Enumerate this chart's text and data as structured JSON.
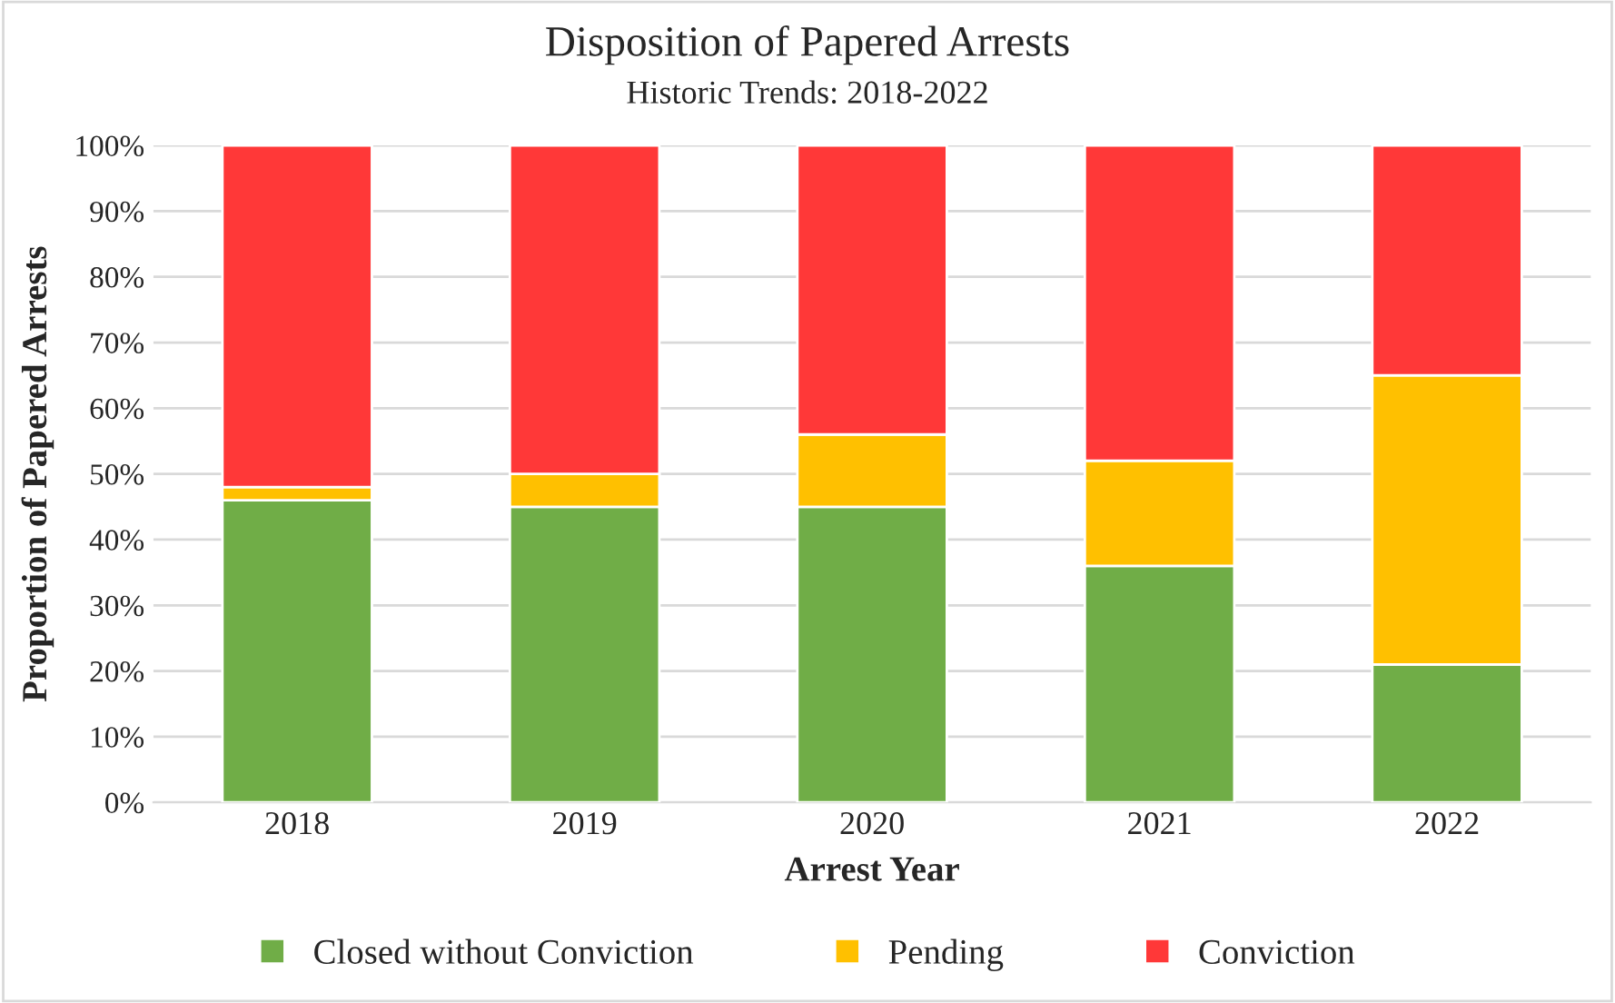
{
  "chart_data": {
    "type": "bar",
    "stacked": true,
    "title": "Disposition of Papered Arrests",
    "subtitle": "Historic Trends: 2018-2022",
    "xlabel": "Arrest Year",
    "ylabel": "Proportion of Papered Arrests",
    "categories": [
      "2018",
      "2019",
      "2020",
      "2021",
      "2022"
    ],
    "series": [
      {
        "name": "Closed without Conviction",
        "color": "#70ad47",
        "values": [
          46,
          45,
          45,
          36,
          21
        ]
      },
      {
        "name": "Pending",
        "color": "#ffc000",
        "values": [
          2,
          5,
          11,
          16,
          44
        ]
      },
      {
        "name": "Conviction",
        "color": "#ff3838",
        "values": [
          52,
          50,
          44,
          48,
          35
        ]
      }
    ],
    "ylim": [
      0,
      100
    ],
    "yticks": [
      {
        "value": 0,
        "label": "0%"
      },
      {
        "value": 10,
        "label": "10%"
      },
      {
        "value": 20,
        "label": "20%"
      },
      {
        "value": 30,
        "label": "30%"
      },
      {
        "value": 40,
        "label": "40%"
      },
      {
        "value": 50,
        "label": "50%"
      },
      {
        "value": 60,
        "label": "60%"
      },
      {
        "value": 70,
        "label": "70%"
      },
      {
        "value": 80,
        "label": "80%"
      },
      {
        "value": 90,
        "label": "90%"
      },
      {
        "value": 100,
        "label": "100%"
      }
    ],
    "grid": "y",
    "legend": "bottom"
  }
}
